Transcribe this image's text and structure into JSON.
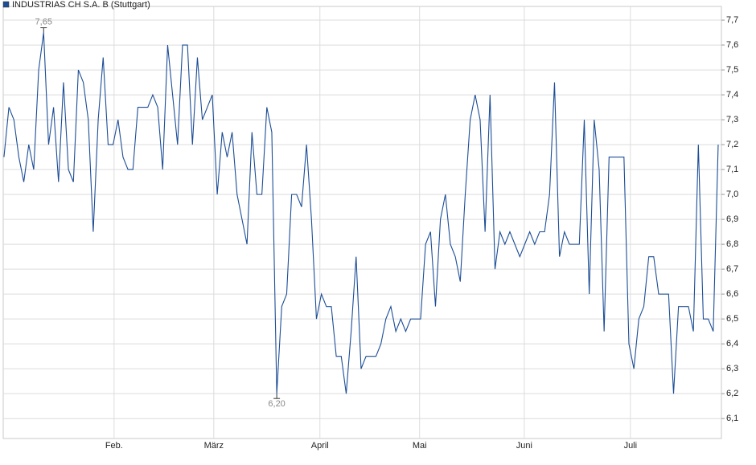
{
  "chart_data": {
    "type": "line",
    "legend": "top-left",
    "grid": true,
    "series": [
      {
        "name": "INDUSTRIAS CH S.A. B (Stuttgart)",
        "color": "#1c4d96",
        "values": [
          7.15,
          7.35,
          7.3,
          7.15,
          7.05,
          7.2,
          7.1,
          7.5,
          7.65,
          7.2,
          7.35,
          7.05,
          7.45,
          7.1,
          7.05,
          7.5,
          7.45,
          7.3,
          6.85,
          7.3,
          7.55,
          7.2,
          7.2,
          7.3,
          7.15,
          7.1,
          7.1,
          7.35,
          7.35,
          7.35,
          7.4,
          7.35,
          7.1,
          7.6,
          7.4,
          7.2,
          7.6,
          7.6,
          7.2,
          7.55,
          7.3,
          7.35,
          7.4,
          7.0,
          7.25,
          7.15,
          7.25,
          7.0,
          6.9,
          6.8,
          7.25,
          7.0,
          7.0,
          7.35,
          7.25,
          6.2,
          6.55,
          6.6,
          7.0,
          7.0,
          6.95,
          7.2,
          6.9,
          6.5,
          6.6,
          6.55,
          6.55,
          6.35,
          6.35,
          6.2,
          6.45,
          6.75,
          6.3,
          6.35,
          6.35,
          6.35,
          6.4,
          6.5,
          6.55,
          6.45,
          6.5,
          6.45,
          6.5,
          6.5,
          6.5,
          6.8,
          6.85,
          6.55,
          6.9,
          7.0,
          6.8,
          6.75,
          6.65,
          7.0,
          7.3,
          7.4,
          7.3,
          6.85,
          7.4,
          6.7,
          6.85,
          6.8,
          6.85,
          6.8,
          6.75,
          6.8,
          6.85,
          6.8,
          6.85,
          6.85,
          7.0,
          7.45,
          6.75,
          6.85,
          6.8,
          6.8,
          6.8,
          7.3,
          6.6,
          7.3,
          7.1,
          6.45,
          7.15,
          7.15,
          7.15,
          7.15,
          6.4,
          6.3,
          6.5,
          6.55,
          6.75,
          6.75,
          6.6,
          6.6,
          6.6,
          6.2,
          6.55,
          6.55,
          6.55,
          6.45,
          7.2,
          6.5,
          6.5,
          6.45,
          7.2
        ]
      }
    ],
    "x": [
      0,
      1,
      2,
      3,
      4,
      5,
      6,
      7,
      8,
      9,
      10,
      11,
      12,
      13,
      14,
      15,
      16,
      17,
      18,
      19,
      20,
      21,
      22,
      23,
      24,
      25,
      26,
      27,
      28,
      29,
      30,
      31,
      32,
      33,
      34,
      35,
      36,
      37,
      38,
      39,
      40,
      41,
      42,
      43,
      44,
      45,
      46,
      47,
      48,
      49,
      50,
      51,
      52,
      53,
      54,
      55,
      56,
      57,
      58,
      59,
      60,
      61,
      62,
      63,
      64,
      65,
      66,
      67,
      68,
      69,
      70,
      71,
      72,
      73,
      74,
      75,
      76,
      77,
      78,
      79,
      80,
      81,
      82,
      83,
      84,
      85,
      86,
      87,
      88,
      89,
      90,
      91,
      92,
      93,
      94,
      95,
      96,
      97,
      98,
      99,
      100,
      101,
      102,
      103,
      104,
      105,
      106,
      107,
      108,
      109,
      110,
      111,
      112,
      113,
      114,
      115,
      116,
      117,
      118,
      119,
      120,
      121,
      122,
      123,
      124,
      125,
      126,
      127,
      128,
      129,
      130,
      131,
      132,
      133,
      134,
      135,
      136,
      137,
      138,
      139,
      140,
      141,
      142,
      143,
      144
    ],
    "xlim": [
      -0.15,
      144.65
    ],
    "xticks": [
      {
        "value": 22.2,
        "label": "Feb."
      },
      {
        "value": 42.3,
        "label": "März"
      },
      {
        "value": 63.7,
        "label": "April"
      },
      {
        "value": 83.8,
        "label": "Mai"
      },
      {
        "value": 104.9,
        "label": "Juni"
      },
      {
        "value": 126.3,
        "label": "Juli"
      }
    ],
    "ylim": [
      6.02,
      7.755
    ],
    "yticks": [
      {
        "value": 6.1,
        "label": "6,1"
      },
      {
        "value": 6.2,
        "label": "6,2"
      },
      {
        "value": 6.3,
        "label": "6,3"
      },
      {
        "value": 6.4,
        "label": "6,4"
      },
      {
        "value": 6.5,
        "label": "6,5"
      },
      {
        "value": 6.6,
        "label": "6,6"
      },
      {
        "value": 6.7,
        "label": "6,7"
      },
      {
        "value": 6.8,
        "label": "6,8"
      },
      {
        "value": 6.9,
        "label": "6,9"
      },
      {
        "value": 7.0,
        "label": "7,0"
      },
      {
        "value": 7.1,
        "label": "7,1"
      },
      {
        "value": 7.2,
        "label": "7,2"
      },
      {
        "value": 7.3,
        "label": "7,3"
      },
      {
        "value": 7.4,
        "label": "7,4"
      },
      {
        "value": 7.5,
        "label": "7,5"
      },
      {
        "value": 7.6,
        "label": "7,6"
      },
      {
        "value": 7.7,
        "label": "7,7"
      }
    ],
    "annotations": [
      {
        "x": 8,
        "value": 7.65,
        "label": "7,65",
        "position": "above"
      },
      {
        "x": 55,
        "value": 6.2,
        "label": "6,20",
        "position": "below"
      }
    ]
  }
}
